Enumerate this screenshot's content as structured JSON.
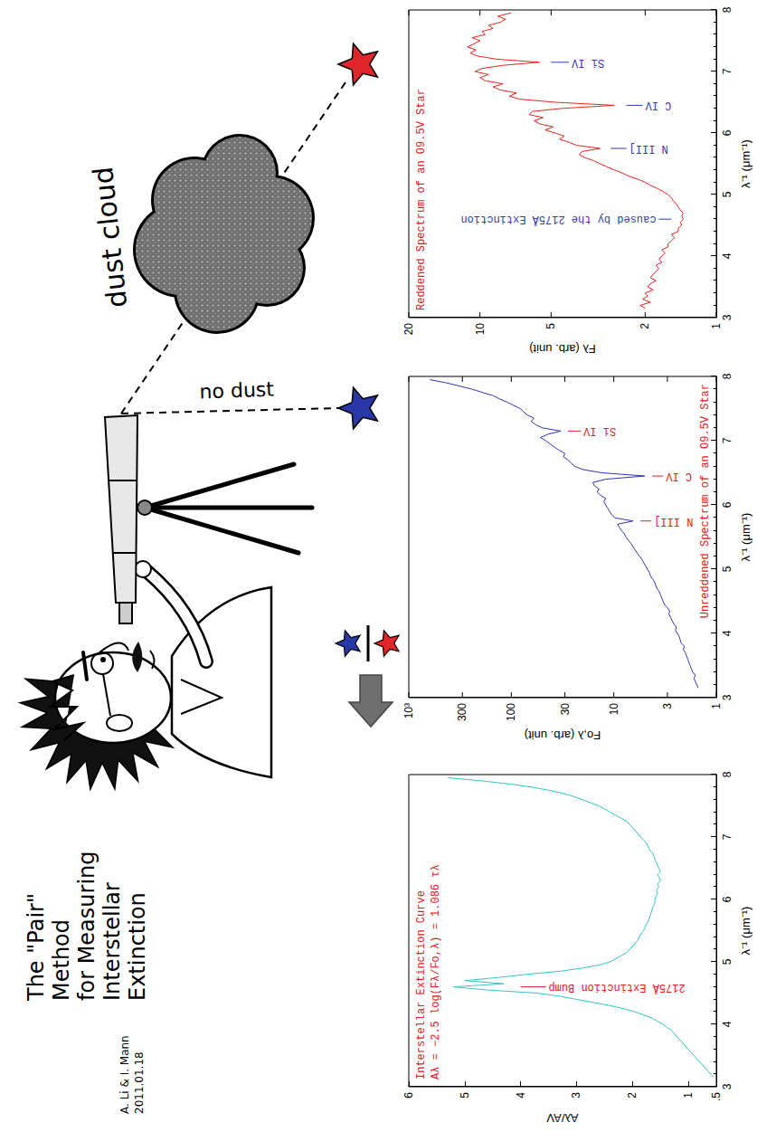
{
  "title": {
    "lines": [
      "The \"Pair\"",
      "Method",
      "for Measuring",
      "Interstellar",
      "Extinction"
    ],
    "credit": [
      "A. Li & I. Mann",
      "2011.01.18"
    ]
  },
  "diagram": {
    "cloud_label": "dust cloud",
    "no_dust_label": "no dust"
  },
  "chart_data": [
    {
      "type": "line",
      "title": "Reddened Spectrum of an O9.5V Star",
      "x_label": "λ⁻¹ (μm⁻¹)",
      "y_label": "Fλ (arb. unit)",
      "log": "y",
      "color": "#e8231f",
      "xlim": [
        3,
        8
      ],
      "xticks": [
        3,
        4,
        5,
        6,
        7,
        8
      ],
      "ylim": [
        1,
        20
      ],
      "yticks": [
        1,
        2,
        5,
        10,
        20
      ],
      "x": [
        3.15,
        3.2,
        3.25,
        3.3,
        3.35,
        3.4,
        3.45,
        3.5,
        3.55,
        3.6,
        3.65,
        3.7,
        3.75,
        3.8,
        3.85,
        3.9,
        3.95,
        4,
        4.05,
        4.1,
        4.15,
        4.2,
        4.25,
        4.3,
        4.35,
        4.4,
        4.45,
        4.5,
        4.55,
        4.6,
        4.65,
        4.7,
        4.75,
        4.8,
        4.85,
        4.9,
        4.95,
        5,
        5.05,
        5.1,
        5.15,
        5.2,
        5.25,
        5.3,
        5.35,
        5.4,
        5.45,
        5.5,
        5.55,
        5.6,
        5.65,
        5.7,
        5.75,
        5.8,
        5.85,
        5.9,
        5.95,
        6,
        6.05,
        6.1,
        6.15,
        6.2,
        6.25,
        6.3,
        6.35,
        6.4,
        6.45,
        6.5,
        6.55,
        6.6,
        6.65,
        6.7,
        6.75,
        6.8,
        6.85,
        6.9,
        6.95,
        7,
        7.05,
        7.1,
        7.15,
        7.2,
        7.25,
        7.3,
        7.35,
        7.4,
        7.45,
        7.5,
        7.55,
        7.6,
        7.65,
        7.7,
        7.75,
        7.8,
        7.85,
        7.9,
        7.95
      ],
      "values": [
        2.0,
        2.1,
        1.9,
        2.05,
        1.95,
        2.0,
        1.85,
        1.95,
        1.9,
        1.8,
        1.9,
        1.85,
        1.8,
        1.75,
        1.8,
        1.7,
        1.75,
        1.7,
        1.65,
        1.7,
        1.6,
        1.6,
        1.55,
        1.5,
        1.55,
        1.45,
        1.45,
        1.4,
        1.42,
        1.38,
        1.4,
        1.38,
        1.42,
        1.45,
        1.48,
        1.52,
        1.55,
        1.6,
        1.68,
        1.78,
        1.9,
        2.0,
        2.15,
        2.35,
        2.5,
        2.7,
        2.9,
        3.1,
        3.3,
        3.6,
        3.8,
        3.7,
        3.1,
        3.9,
        4.2,
        4.6,
        4.4,
        4.8,
        5.3,
        4.9,
        5.6,
        5.9,
        5.4,
        6.2,
        6.0,
        4.5,
        2.7,
        4.8,
        6.8,
        7.5,
        7.0,
        8.2,
        8.8,
        8.0,
        9.5,
        10.0,
        9.2,
        10.5,
        9.8,
        8.0,
        5.6,
        8.5,
        10.2,
        11.0,
        10.4,
        11.3,
        10.6,
        10.0,
        10.8,
        9.5,
        9.8,
        8.8,
        9.2,
        8.2,
        7.8,
        8.4,
        7.4
      ],
      "annotations": [
        {
          "text": "caused by the 2175Å Extinction",
          "x": 4.6,
          "y": 1.55,
          "label_y": 1.75,
          "color": "#2e3cb4"
        },
        {
          "text": "N III]",
          "x": 5.75,
          "y": 2.8,
          "label_y": 2.4,
          "color": "#2e3cb4"
        },
        {
          "text": "C IV",
          "x": 6.45,
          "y": 2.4,
          "label_y": 2.05,
          "color": "#2e3cb4"
        },
        {
          "text": "Si IV",
          "x": 7.15,
          "y": 5.0,
          "label_y": 4.2,
          "color": "#2e3cb4"
        }
      ]
    },
    {
      "type": "line",
      "title": "Unreddened Spectrum of an O9.5V Star",
      "x_label": "λ⁻¹ (μm⁻¹)",
      "y_label": "Fo,λ (arb. unit)",
      "log": "y",
      "color": "#2b36b0",
      "xlim": [
        3,
        8
      ],
      "xticks": [
        3,
        4,
        5,
        6,
        7,
        8
      ],
      "ylim": [
        1,
        1000
      ],
      "yticks": [
        1,
        3,
        10,
        30,
        100,
        300,
        {
          "value": 1000,
          "label": "10³"
        }
      ],
      "x": [
        3.15,
        3.2,
        3.25,
        3.3,
        3.35,
        3.4,
        3.45,
        3.5,
        3.55,
        3.6,
        3.65,
        3.7,
        3.75,
        3.8,
        3.85,
        3.9,
        3.95,
        4,
        4.05,
        4.1,
        4.15,
        4.2,
        4.25,
        4.3,
        4.35,
        4.4,
        4.45,
        4.5,
        4.55,
        4.6,
        4.65,
        4.7,
        4.75,
        4.8,
        4.85,
        4.9,
        4.95,
        5,
        5.05,
        5.1,
        5.15,
        5.2,
        5.25,
        5.3,
        5.35,
        5.4,
        5.45,
        5.5,
        5.55,
        5.6,
        5.65,
        5.7,
        5.75,
        5.8,
        5.85,
        5.9,
        5.95,
        6,
        6.05,
        6.1,
        6.15,
        6.2,
        6.25,
        6.3,
        6.35,
        6.4,
        6.45,
        6.5,
        6.55,
        6.6,
        6.65,
        6.7,
        6.75,
        6.8,
        6.85,
        6.9,
        6.95,
        7,
        7.05,
        7.1,
        7.15,
        7.2,
        7.25,
        7.3,
        7.35,
        7.4,
        7.45,
        7.5,
        7.55,
        7.6,
        7.65,
        7.7,
        7.75,
        7.8,
        7.85,
        7.9,
        7.95
      ],
      "values": [
        1.5,
        1.55,
        1.6,
        1.65,
        1.6,
        1.7,
        1.75,
        1.8,
        1.85,
        1.9,
        1.95,
        2.0,
        2.1,
        2.05,
        2.2,
        2.25,
        2.3,
        2.4,
        2.5,
        2.45,
        2.6,
        2.7,
        2.8,
        2.9,
        2.85,
        3.0,
        3.2,
        3.3,
        3.4,
        3.5,
        3.6,
        3.8,
        3.9,
        4.0,
        4.2,
        4.4,
        4.5,
        4.7,
        4.9,
        5.1,
        5.3,
        5.6,
        5.9,
        6.2,
        6.5,
        6.8,
        7.2,
        7.6,
        7.9,
        8.4,
        8.8,
        9.2,
        6.5,
        9.8,
        10.5,
        11.0,
        11.5,
        12.0,
        12.5,
        12.0,
        13.5,
        14.5,
        14.0,
        15.5,
        16.0,
        12.0,
        5.0,
        13.0,
        20.0,
        24.0,
        26.0,
        28.0,
        31.0,
        30.0,
        34.0,
        38.0,
        42.0,
        46,
        52,
        44,
        33,
        50,
        58,
        64,
        60,
        70,
        76,
        82,
        95,
        110,
        130,
        150,
        190,
        240,
        320,
        430,
        620
      ],
      "annotations": [
        {
          "text": "N III]",
          "x": 5.75,
          "y": 5.5,
          "label_y": 4.3,
          "color": "#e02020"
        },
        {
          "text": "C IV",
          "x": 6.45,
          "y": 4.2,
          "label_y": 3.3,
          "color": "#e02020"
        },
        {
          "text": "Si IV",
          "x": 7.15,
          "y": 28,
          "label_y": 21,
          "color": "#e02020"
        }
      ]
    },
    {
      "type": "line",
      "title": "Interstellar Extinction Curve",
      "subtitle": "Aλ = −2.5 log(Fλ/Fo,λ) = 1.086 τλ",
      "x_label": "λ⁻¹ (μm⁻¹)",
      "y_label": "Aλ/AV",
      "color": "#35c4c4",
      "xlim": [
        3,
        8
      ],
      "xticks": [
        3,
        4,
        5,
        6,
        7,
        8
      ],
      "ylim": [
        0.5,
        6
      ],
      "yticks": [
        {
          "value": 0.5,
          "label": ".5"
        },
        1,
        2,
        3,
        4,
        5,
        6
      ],
      "x": [
        3.15,
        3.2,
        3.25,
        3.3,
        3.35,
        3.4,
        3.45,
        3.5,
        3.55,
        3.6,
        3.65,
        3.7,
        3.75,
        3.8,
        3.85,
        3.9,
        3.95,
        4,
        4.05,
        4.1,
        4.15,
        4.2,
        4.25,
        4.3,
        4.35,
        4.4,
        4.45,
        4.5,
        4.55,
        4.6,
        4.65,
        4.7,
        4.75,
        4.8,
        4.85,
        4.9,
        4.95,
        5,
        5.05,
        5.1,
        5.15,
        5.2,
        5.25,
        5.3,
        5.35,
        5.4,
        5.45,
        5.5,
        5.55,
        5.6,
        5.65,
        5.7,
        5.75,
        5.8,
        5.85,
        5.9,
        5.95,
        6,
        6.05,
        6.1,
        6.15,
        6.2,
        6.25,
        6.3,
        6.35,
        6.4,
        6.45,
        6.5,
        6.55,
        6.6,
        6.65,
        6.7,
        6.75,
        6.8,
        6.85,
        6.9,
        6.95,
        7,
        7.05,
        7.1,
        7.15,
        7.2,
        7.25,
        7.3,
        7.35,
        7.4,
        7.45,
        7.5,
        7.55,
        7.6,
        7.65,
        7.7,
        7.75,
        7.8,
        7.85,
        7.9,
        7.95
      ],
      "values": [
        0.55,
        0.6,
        0.65,
        0.7,
        0.75,
        0.8,
        0.85,
        0.9,
        0.95,
        1.0,
        1.05,
        1.1,
        1.15,
        1.2,
        1.25,
        1.3,
        1.38,
        1.45,
        1.55,
        1.65,
        1.8,
        1.95,
        2.15,
        2.4,
        2.7,
        3.0,
        3.3,
        3.7,
        4.6,
        5.2,
        4.3,
        5.0,
        4.4,
        3.9,
        3.3,
        2.9,
        2.6,
        2.4,
        2.3,
        2.2,
        2.1,
        2.05,
        2.0,
        1.95,
        1.9,
        1.88,
        1.85,
        1.8,
        1.78,
        1.75,
        1.72,
        1.7,
        1.68,
        1.66,
        1.65,
        1.62,
        1.6,
        1.6,
        1.58,
        1.55,
        1.57,
        1.53,
        1.55,
        1.5,
        1.52,
        1.55,
        1.5,
        1.53,
        1.55,
        1.58,
        1.6,
        1.62,
        1.65,
        1.7,
        1.72,
        1.75,
        1.8,
        1.85,
        1.9,
        1.95,
        2.0,
        2.05,
        2.1,
        2.2,
        2.3,
        2.4,
        2.5,
        2.6,
        2.75,
        2.9,
        3.05,
        3.25,
        3.5,
        3.8,
        4.2,
        4.7,
        5.3
      ],
      "annotations": [
        {
          "text": "2175Å Extinction Bump",
          "x": 4.6,
          "y": 4.0,
          "label_y": 3.55,
          "color": "#e02020"
        }
      ]
    }
  ]
}
